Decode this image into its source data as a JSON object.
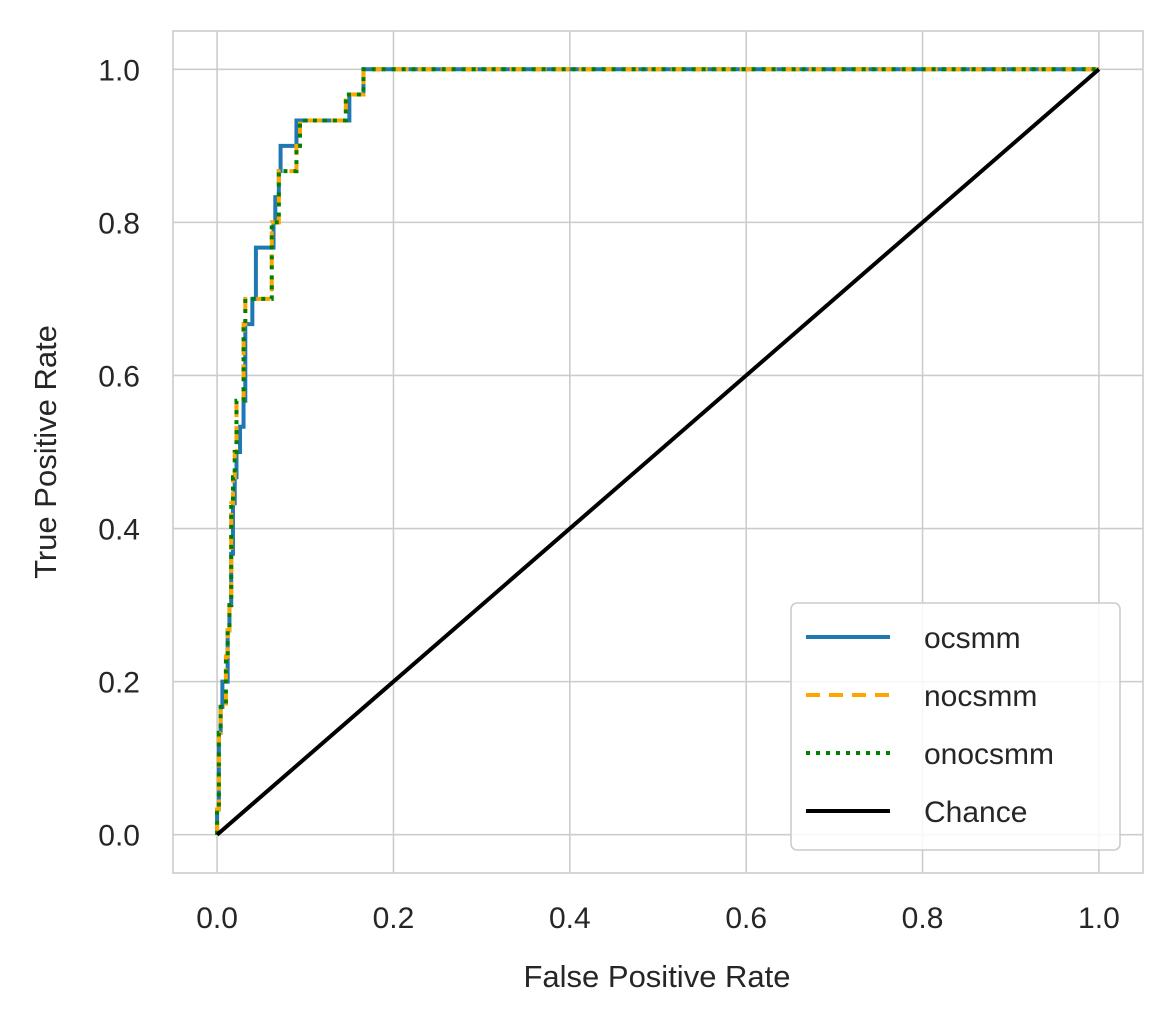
{
  "chart_data": {
    "type": "line",
    "title": "",
    "xlabel": "False Positive Rate",
    "ylabel": "True Positive Rate",
    "xlim": [
      -0.05,
      1.05
    ],
    "ylim": [
      -0.05,
      1.05
    ],
    "xticks": [
      0.0,
      0.2,
      0.4,
      0.6,
      0.8,
      1.0
    ],
    "yticks": [
      0.0,
      0.2,
      0.4,
      0.6,
      0.8,
      1.0
    ],
    "xtick_labels": [
      "0.0",
      "0.2",
      "0.4",
      "0.6",
      "0.8",
      "1.0"
    ],
    "ytick_labels": [
      "0.0",
      "0.2",
      "0.4",
      "0.6",
      "0.8",
      "1.0"
    ],
    "grid": true,
    "legend_position": "lower-right",
    "series": [
      {
        "name": "ocsmm",
        "color": "#1f77b4",
        "dash": "solid",
        "x": [
          0,
          0,
          0.002,
          0.002,
          0.004,
          0.004,
          0.006,
          0.006,
          0.012,
          0.012,
          0.014,
          0.014,
          0.016,
          0.016,
          0.018,
          0.018,
          0.02,
          0.02,
          0.022,
          0.022,
          0.026,
          0.026,
          0.03,
          0.03,
          0.032,
          0.032,
          0.04,
          0.04,
          0.044,
          0.044,
          0.064,
          0.064,
          0.066,
          0.066,
          0.07,
          0.07,
          0.072,
          0.072,
          0.09,
          0.09,
          0.1,
          0.1,
          0.15,
          0.15,
          0.152,
          0.152,
          0.166,
          0.166,
          1.0
        ],
        "y": [
          0,
          0.033,
          0.033,
          0.133,
          0.133,
          0.167,
          0.167,
          0.2,
          0.2,
          0.267,
          0.267,
          0.3,
          0.3,
          0.367,
          0.367,
          0.433,
          0.433,
          0.467,
          0.467,
          0.5,
          0.5,
          0.533,
          0.533,
          0.567,
          0.567,
          0.667,
          0.667,
          0.7,
          0.7,
          0.767,
          0.767,
          0.8,
          0.8,
          0.833,
          0.833,
          0.867,
          0.867,
          0.9,
          0.9,
          0.933,
          0.933,
          0.933,
          0.933,
          0.967,
          0.967,
          0.967,
          0.967,
          1.0,
          1.0
        ]
      },
      {
        "name": "nocsmm",
        "color": "#ffa500",
        "dash": "dashed",
        "x": [
          0,
          0,
          0.002,
          0.002,
          0.004,
          0.004,
          0.01,
          0.01,
          0.012,
          0.012,
          0.014,
          0.014,
          0.016,
          0.016,
          0.018,
          0.018,
          0.02,
          0.02,
          0.022,
          0.022,
          0.03,
          0.03,
          0.032,
          0.032,
          0.042,
          0.042,
          0.062,
          0.062,
          0.07,
          0.07,
          0.09,
          0.09,
          0.094,
          0.094,
          0.146,
          0.146,
          0.166,
          0.166,
          1.0
        ],
        "y": [
          0,
          0.033,
          0.033,
          0.133,
          0.133,
          0.167,
          0.167,
          0.233,
          0.233,
          0.267,
          0.267,
          0.3,
          0.3,
          0.433,
          0.433,
          0.467,
          0.467,
          0.5,
          0.5,
          0.567,
          0.567,
          0.667,
          0.667,
          0.7,
          0.7,
          0.7,
          0.7,
          0.8,
          0.8,
          0.867,
          0.867,
          0.9,
          0.9,
          0.933,
          0.933,
          0.967,
          0.967,
          1.0,
          1.0
        ]
      },
      {
        "name": "onocsmm",
        "color": "#008000",
        "dash": "dotted",
        "x": [
          0,
          0,
          0.002,
          0.002,
          0.004,
          0.004,
          0.01,
          0.01,
          0.012,
          0.012,
          0.014,
          0.014,
          0.016,
          0.016,
          0.018,
          0.018,
          0.02,
          0.02,
          0.022,
          0.022,
          0.03,
          0.03,
          0.032,
          0.032,
          0.042,
          0.042,
          0.062,
          0.062,
          0.07,
          0.07,
          0.09,
          0.09,
          0.094,
          0.094,
          0.146,
          0.146,
          0.166,
          0.166,
          1.0
        ],
        "y": [
          0,
          0.033,
          0.033,
          0.133,
          0.133,
          0.167,
          0.167,
          0.233,
          0.233,
          0.267,
          0.267,
          0.3,
          0.3,
          0.433,
          0.433,
          0.467,
          0.467,
          0.5,
          0.5,
          0.567,
          0.567,
          0.667,
          0.667,
          0.7,
          0.7,
          0.7,
          0.7,
          0.8,
          0.8,
          0.867,
          0.867,
          0.9,
          0.9,
          0.933,
          0.933,
          0.967,
          0.967,
          1.0,
          1.0
        ]
      },
      {
        "name": "Chance",
        "color": "#000000",
        "dash": "solid",
        "x": [
          0,
          1
        ],
        "y": [
          0,
          1
        ]
      }
    ]
  }
}
